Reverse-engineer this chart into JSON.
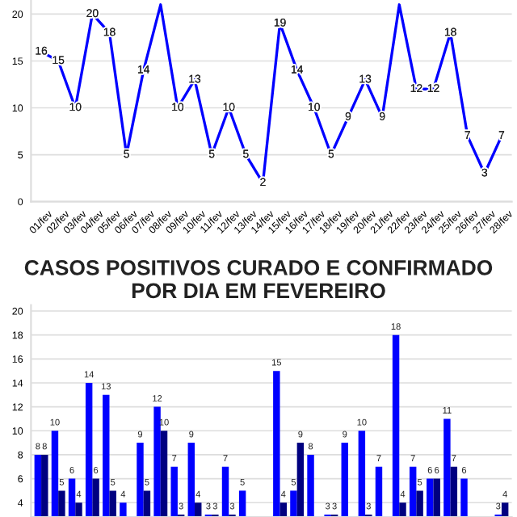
{
  "chart_data": [
    {
      "type": "line",
      "categories": [
        "01/fev",
        "02/fev",
        "03/fev",
        "04/fev",
        "05/fev",
        "06/fev",
        "07/fev",
        "08/fev",
        "09/fev",
        "10/fev",
        "11/fev",
        "12/fev",
        "13/fev",
        "14/fev",
        "15/fev",
        "16/fev",
        "17/fev",
        "18/fev",
        "19/fev",
        "20/fev",
        "21/fev",
        "22/fev",
        "23/fev",
        "24/fev",
        "25/fev",
        "26/fev",
        "27/fev",
        "28/fev"
      ],
      "series": [
        {
          "color": "#0000ff",
          "values": [
            16,
            15,
            10,
            20,
            18,
            5,
            14,
            21,
            10,
            13,
            5,
            10,
            5,
            2,
            19,
            14,
            10,
            5,
            9,
            13,
            9,
            21,
            12,
            12,
            18,
            7,
            3,
            7
          ],
          "value_labels": [
            "16",
            "15",
            "10",
            "20",
            "18",
            "5",
            "14",
            null,
            "10",
            "13",
            "5",
            "10",
            "5",
            "2",
            "19",
            "14",
            "10",
            "5",
            "9",
            "13",
            "9",
            null,
            "12",
            "12",
            "18",
            "7",
            "3",
            "7"
          ]
        }
      ],
      "ylim": [
        0,
        21.5
      ],
      "yticks": [
        0,
        5,
        10,
        15,
        20
      ],
      "grid": "y",
      "legend": false,
      "marker": "none",
      "line_style": "solid"
    },
    {
      "type": "bar",
      "title": "CASOS POSITIVOS CURADO E CONFIRMADO POR DIA EM FEVEREIRO",
      "categories": [
        null,
        null,
        null,
        null,
        null,
        null,
        null,
        null,
        null,
        null,
        null,
        null,
        null,
        null,
        null,
        null,
        null,
        null,
        null,
        null,
        null,
        null,
        null,
        null,
        null,
        null,
        null,
        null
      ],
      "series": [
        {
          "color": "#0000ff",
          "values": [
            8,
            10,
            6,
            14,
            13,
            4,
            9,
            12,
            7,
            9,
            3,
            7,
            5,
            null,
            15,
            5,
            8,
            3,
            9,
            10,
            7,
            18,
            7,
            6,
            11,
            6,
            null,
            3
          ]
        },
        {
          "color": "#000080",
          "values": [
            8,
            5,
            4,
            6,
            5,
            null,
            5,
            10,
            3,
            4,
            3,
            3,
            null,
            null,
            4,
            9,
            null,
            3,
            null,
            3,
            null,
            4,
            5,
            6,
            7,
            null,
            null,
            4
          ]
        }
      ],
      "ylim": [
        2.8,
        20.5
      ],
      "yticks": [
        4,
        6,
        8,
        10,
        12,
        14,
        16,
        18,
        20
      ],
      "grid": "y",
      "legend": false,
      "data_labels": true,
      "tick_labels": "y"
    }
  ]
}
